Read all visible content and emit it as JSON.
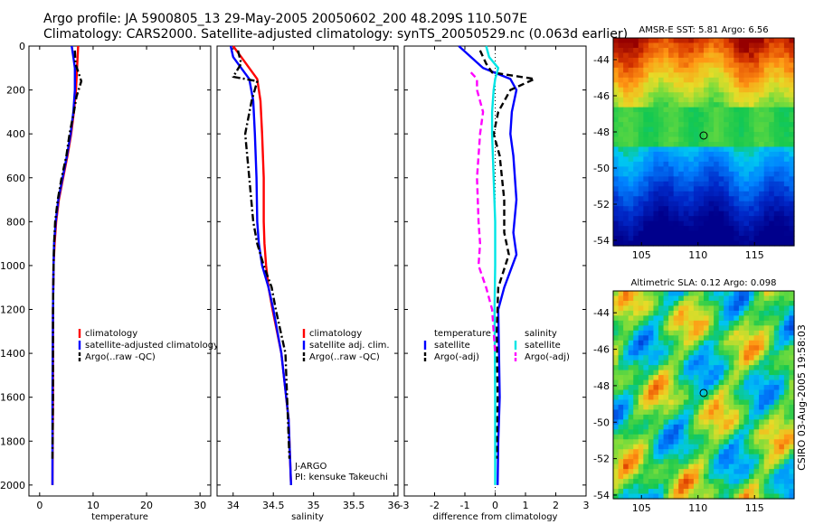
{
  "header": {
    "line1": "Argo profile: JA 5900805_13 29-May-2005 20050602_200 48.209S 110.507E",
    "line2": "Climatology: CARS2000. Satellite-adjusted climatology: synTS_20050529.nc (0.063d earlier)"
  },
  "side_stamp": "CSIRO 03-Aug-2005 19:58:03",
  "colors": {
    "climatology": "#ff0000",
    "satellite": "#0000ff",
    "argo": "#000000",
    "satellite_diff": "#00e5e5",
    "argo_diff": "#ff00ff"
  },
  "chart_data": [
    {
      "type": "line",
      "id": "temperature",
      "xlabel": "temperature",
      "xlim": [
        -2,
        32
      ],
      "xticks": [
        0,
        10,
        20,
        30
      ],
      "ylim": [
        2050,
        0
      ],
      "yticks": [
        0,
        200,
        400,
        600,
        800,
        1000,
        1200,
        1400,
        1600,
        1800,
        2000
      ],
      "legend": {
        "position": "middle-right",
        "entries": [
          "climatology",
          "satellite-adjusted climatology",
          "Argo(..raw -QC)"
        ]
      },
      "series": [
        {
          "name": "climatology",
          "style": "solid",
          "color": "climatology",
          "x": [
            7.2,
            7.1,
            7.0,
            6.8,
            6.4,
            5.9,
            5.2,
            4.4,
            3.6,
            3.1,
            2.8,
            2.6,
            2.5,
            2.5,
            2.4
          ],
          "y": [
            0,
            50,
            100,
            200,
            300,
            400,
            500,
            600,
            700,
            800,
            900,
            1000,
            1200,
            1600,
            2000
          ]
        },
        {
          "name": "satellite-adjusted climatology",
          "style": "solid",
          "color": "satellite",
          "x": [
            6.0,
            6.3,
            6.6,
            6.6,
            6.3,
            5.8,
            5.1,
            4.3,
            3.5,
            3.0,
            2.7,
            2.6,
            2.5,
            2.4,
            2.4
          ],
          "y": [
            0,
            50,
            100,
            200,
            300,
            400,
            500,
            600,
            700,
            800,
            900,
            1000,
            1200,
            1600,
            2000
          ]
        },
        {
          "name": "Argo(..raw -QC)",
          "style": "dashdot",
          "color": "argo",
          "x": [
            6.6,
            6.7,
            7.8,
            6.9,
            6.4,
            5.6,
            5.0,
            4.1,
            3.4,
            2.9,
            2.7,
            2.6,
            2.5,
            2.5,
            2.4
          ],
          "y": [
            20,
            80,
            160,
            230,
            300,
            400,
            500,
            600,
            700,
            800,
            900,
            1000,
            1200,
            1600,
            1880
          ]
        }
      ]
    },
    {
      "type": "line",
      "id": "salinity",
      "xlabel": "salinity",
      "xlim": [
        33.8,
        36.05
      ],
      "xticks": [
        34,
        34.5,
        35,
        35.5,
        36
      ],
      "ylim": [
        2050,
        0
      ],
      "legend": {
        "position": "middle-right",
        "entries": [
          "climatology",
          "satellite adj. clim.",
          "Argo(..raw -QC)"
        ]
      },
      "annotation": [
        "J-ARGO",
        "PI: kensuke Takeuchi"
      ],
      "series": [
        {
          "name": "climatology",
          "style": "solid",
          "color": "climatology",
          "x": [
            34.0,
            34.1,
            34.2,
            34.3,
            34.34,
            34.36,
            34.38,
            34.38,
            34.39,
            34.41,
            34.44,
            34.49,
            34.6,
            34.69,
            34.72
          ],
          "y": [
            0,
            50,
            100,
            150,
            250,
            400,
            600,
            800,
            900,
            1000,
            1100,
            1200,
            1400,
            1700,
            2000
          ]
        },
        {
          "name": "satellite adj. clim.",
          "style": "solid",
          "color": "satellite",
          "x": [
            33.97,
            34.0,
            34.1,
            34.2,
            34.25,
            34.27,
            34.29,
            34.3,
            34.32,
            34.36,
            34.44,
            34.5,
            34.6,
            34.69,
            34.72
          ],
          "y": [
            0,
            50,
            100,
            150,
            250,
            400,
            600,
            800,
            900,
            1000,
            1100,
            1200,
            1400,
            1700,
            2000
          ]
        },
        {
          "name": "Argo(..raw -QC)",
          "style": "dashdot",
          "color": "argo",
          "x": [
            34.06,
            34.1,
            34.0,
            34.3,
            34.23,
            34.15,
            34.2,
            34.25,
            34.3,
            34.38,
            34.48,
            34.53,
            34.65,
            34.7
          ],
          "y": [
            20,
            80,
            140,
            160,
            250,
            400,
            600,
            800,
            900,
            1000,
            1100,
            1200,
            1400,
            1880
          ]
        }
      ]
    },
    {
      "type": "line",
      "id": "difference",
      "xlabel": "difference from climatology",
      "xlim": [
        -3,
        3
      ],
      "xticks": [
        -3,
        -2,
        -1,
        0,
        1,
        2,
        3
      ],
      "ylim": [
        2050,
        0
      ],
      "legend": {
        "position": "middle",
        "entries": [
          "temperature",
          "satellite",
          "Argo(-adj)",
          "salinity",
          "satellite",
          "Argo(-adj)"
        ]
      },
      "series": [
        {
          "name": "temperature satellite",
          "style": "solid",
          "color": "satellite",
          "x": [
            -1.2,
            -0.8,
            -0.4,
            0.5,
            0.7,
            0.55,
            0.5,
            0.6,
            0.7,
            0.6,
            0.7,
            0.3,
            0.1,
            0.15,
            0.1,
            0.08
          ],
          "y": [
            0,
            50,
            100,
            150,
            200,
            300,
            400,
            500,
            700,
            850,
            950,
            1100,
            1200,
            1600,
            1800,
            2000
          ]
        },
        {
          "name": "temperature Argo(-adj)",
          "style": "dashed",
          "color": "argo",
          "x": [
            -0.5,
            -0.3,
            -0.1,
            1.3,
            0.5,
            0.1,
            -0.05,
            0.15,
            0.3,
            0.3,
            0.45,
            0.1,
            0.05,
            0.08,
            0.05
          ],
          "y": [
            20,
            80,
            120,
            150,
            200,
            300,
            400,
            500,
            700,
            850,
            950,
            1100,
            1300,
            1600,
            1880
          ]
        },
        {
          "name": "salinity satellite",
          "style": "solid",
          "color": "satellite_diff",
          "x": [
            -0.3,
            -0.2,
            0.1,
            0.0,
            -0.05,
            -0.1,
            -0.1,
            -0.05,
            0.0,
            0.0,
            -0.02,
            0.0,
            0.0
          ],
          "y": [
            0,
            50,
            100,
            150,
            200,
            300,
            400,
            600,
            800,
            1000,
            1200,
            1600,
            2000
          ]
        },
        {
          "name": "salinity Argo(-adj)",
          "style": "dashed",
          "color": "argo_diff",
          "x": [
            -0.8,
            -0.6,
            -0.6,
            -0.4,
            -0.5,
            -0.6,
            -0.55,
            -0.5,
            -0.55,
            -0.3,
            -0.1,
            0.0
          ],
          "y": [
            120,
            150,
            200,
            300,
            400,
            600,
            800,
            900,
            1000,
            1100,
            1200,
            1400
          ]
        }
      ]
    },
    {
      "type": "heatmap",
      "id": "sst_map",
      "title": "AMSR-E SST: 5.81 Argo: 6.56",
      "xlim": [
        102.5,
        118.5
      ],
      "ylim": [
        -54.3,
        -42.8
      ],
      "xticks": [
        105,
        110,
        115
      ],
      "yticks": [
        -44,
        -46,
        -48,
        -50,
        -52,
        -54
      ],
      "marker": {
        "lon": 110.5,
        "lat": -48.2
      }
    },
    {
      "type": "heatmap",
      "id": "sla_map",
      "title": "Altimetric SLA: 0.12 Argo: 0.098",
      "xlim": [
        102.5,
        118.5
      ],
      "ylim": [
        -54.2,
        -42.8
      ],
      "xticks": [
        105,
        110,
        115
      ],
      "yticks": [
        -44,
        -46,
        -48,
        -50,
        -52,
        -54
      ],
      "marker": {
        "lon": 110.5,
        "lat": -48.4
      }
    }
  ]
}
